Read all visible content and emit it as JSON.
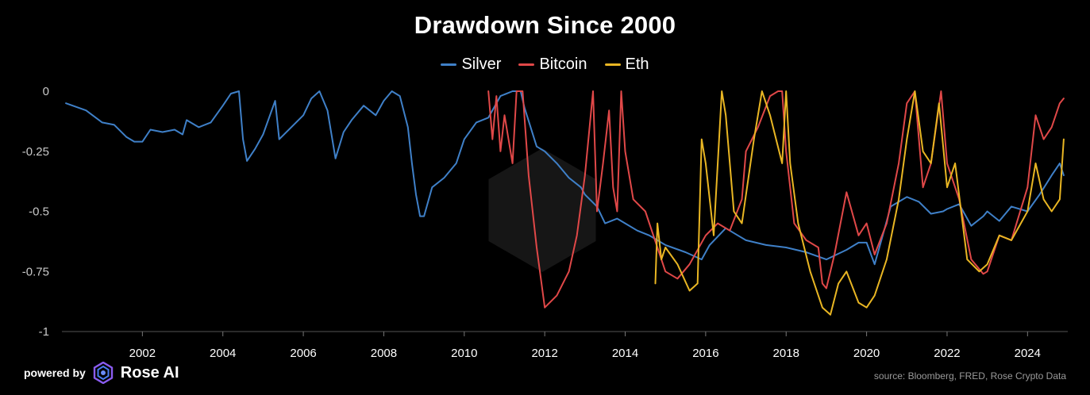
{
  "footer": {
    "powered_by": "powered by",
    "brand": "Rose AI",
    "source": "source: Bloomberg, FRED, Rose Crypto Data"
  },
  "chart_data": {
    "type": "line",
    "title": "Drawdown Since 2000",
    "xlabel": "",
    "ylabel": "",
    "xlim": [
      2000,
      2025
    ],
    "ylim": [
      -1,
      0
    ],
    "x_ticks": [
      2002,
      2004,
      2006,
      2008,
      2010,
      2012,
      2014,
      2016,
      2018,
      2020,
      2022,
      2024
    ],
    "y_ticks": [
      0,
      -0.25,
      -0.5,
      -0.75,
      -1
    ],
    "y_tick_labels": [
      "0",
      "-0.25",
      "-0.5",
      "-0.75",
      "-1"
    ],
    "grid": false,
    "legend_position": "top-center",
    "series": [
      {
        "name": "Silver",
        "color": "#3f80c8",
        "points": [
          [
            2000.1,
            -0.05
          ],
          [
            2000.6,
            -0.08
          ],
          [
            2001.0,
            -0.13
          ],
          [
            2001.3,
            -0.14
          ],
          [
            2001.6,
            -0.19
          ],
          [
            2001.8,
            -0.21
          ],
          [
            2002.0,
            -0.21
          ],
          [
            2002.2,
            -0.16
          ],
          [
            2002.5,
            -0.17
          ],
          [
            2002.8,
            -0.16
          ],
          [
            2003.0,
            -0.18
          ],
          [
            2003.1,
            -0.12
          ],
          [
            2003.4,
            -0.15
          ],
          [
            2003.7,
            -0.13
          ],
          [
            2004.0,
            -0.06
          ],
          [
            2004.2,
            -0.01
          ],
          [
            2004.4,
            0
          ],
          [
            2004.5,
            -0.2
          ],
          [
            2004.6,
            -0.29
          ],
          [
            2004.8,
            -0.24
          ],
          [
            2005.0,
            -0.18
          ],
          [
            2005.3,
            -0.04
          ],
          [
            2005.4,
            -0.2
          ],
          [
            2005.7,
            -0.15
          ],
          [
            2006.0,
            -0.1
          ],
          [
            2006.2,
            -0.03
          ],
          [
            2006.4,
            0
          ],
          [
            2006.6,
            -0.08
          ],
          [
            2006.8,
            -0.28
          ],
          [
            2007.0,
            -0.17
          ],
          [
            2007.2,
            -0.12
          ],
          [
            2007.5,
            -0.06
          ],
          [
            2007.8,
            -0.1
          ],
          [
            2008.0,
            -0.04
          ],
          [
            2008.2,
            0
          ],
          [
            2008.4,
            -0.02
          ],
          [
            2008.6,
            -0.15
          ],
          [
            2008.7,
            -0.3
          ],
          [
            2008.8,
            -0.43
          ],
          [
            2008.9,
            -0.52
          ],
          [
            2009.0,
            -0.52
          ],
          [
            2009.2,
            -0.4
          ],
          [
            2009.5,
            -0.36
          ],
          [
            2009.8,
            -0.3
          ],
          [
            2010.0,
            -0.2
          ],
          [
            2010.3,
            -0.13
          ],
          [
            2010.6,
            -0.11
          ],
          [
            2010.9,
            -0.02
          ],
          [
            2011.2,
            0
          ],
          [
            2011.4,
            0
          ],
          [
            2011.5,
            -0.07
          ],
          [
            2011.8,
            -0.23
          ],
          [
            2012.0,
            -0.25
          ],
          [
            2012.3,
            -0.3
          ],
          [
            2012.6,
            -0.36
          ],
          [
            2012.9,
            -0.4
          ],
          [
            2013.0,
            -0.43
          ],
          [
            2013.3,
            -0.48
          ],
          [
            2013.5,
            -0.55
          ],
          [
            2013.8,
            -0.53
          ],
          [
            2014.0,
            -0.55
          ],
          [
            2014.3,
            -0.58
          ],
          [
            2014.6,
            -0.6
          ],
          [
            2015.0,
            -0.64
          ],
          [
            2015.5,
            -0.67
          ],
          [
            2015.9,
            -0.7
          ],
          [
            2016.1,
            -0.64
          ],
          [
            2016.5,
            -0.57
          ],
          [
            2016.8,
            -0.6
          ],
          [
            2017.0,
            -0.62
          ],
          [
            2017.5,
            -0.64
          ],
          [
            2018.0,
            -0.65
          ],
          [
            2018.5,
            -0.67
          ],
          [
            2019.0,
            -0.7
          ],
          [
            2019.5,
            -0.66
          ],
          [
            2019.8,
            -0.63
          ],
          [
            2020.0,
            -0.63
          ],
          [
            2020.2,
            -0.72
          ],
          [
            2020.4,
            -0.6
          ],
          [
            2020.6,
            -0.48
          ],
          [
            2020.8,
            -0.46
          ],
          [
            2021.0,
            -0.44
          ],
          [
            2021.3,
            -0.46
          ],
          [
            2021.6,
            -0.51
          ],
          [
            2021.9,
            -0.5
          ],
          [
            2022.0,
            -0.49
          ],
          [
            2022.3,
            -0.47
          ],
          [
            2022.6,
            -0.56
          ],
          [
            2022.9,
            -0.52
          ],
          [
            2023.0,
            -0.5
          ],
          [
            2023.3,
            -0.54
          ],
          [
            2023.6,
            -0.48
          ],
          [
            2024.0,
            -0.5
          ],
          [
            2024.3,
            -0.43
          ],
          [
            2024.6,
            -0.35
          ],
          [
            2024.8,
            -0.3
          ],
          [
            2024.9,
            -0.35
          ]
        ]
      },
      {
        "name": "Bitcoin",
        "color": "#e04848",
        "points": [
          [
            2010.6,
            0
          ],
          [
            2010.7,
            -0.2
          ],
          [
            2010.8,
            -0.02
          ],
          [
            2010.9,
            -0.25
          ],
          [
            2011.0,
            -0.1
          ],
          [
            2011.2,
            -0.3
          ],
          [
            2011.3,
            0
          ],
          [
            2011.45,
            0
          ],
          [
            2011.6,
            -0.35
          ],
          [
            2011.8,
            -0.65
          ],
          [
            2012.0,
            -0.9
          ],
          [
            2012.3,
            -0.85
          ],
          [
            2012.6,
            -0.75
          ],
          [
            2012.8,
            -0.6
          ],
          [
            2013.0,
            -0.35
          ],
          [
            2013.2,
            0
          ],
          [
            2013.3,
            -0.5
          ],
          [
            2013.45,
            -0.3
          ],
          [
            2013.6,
            -0.08
          ],
          [
            2013.7,
            -0.4
          ],
          [
            2013.8,
            -0.5
          ],
          [
            2013.9,
            0
          ],
          [
            2014.0,
            -0.25
          ],
          [
            2014.2,
            -0.45
          ],
          [
            2014.5,
            -0.5
          ],
          [
            2014.8,
            -0.65
          ],
          [
            2015.0,
            -0.75
          ],
          [
            2015.3,
            -0.78
          ],
          [
            2015.6,
            -0.72
          ],
          [
            2016.0,
            -0.6
          ],
          [
            2016.3,
            -0.55
          ],
          [
            2016.6,
            -0.58
          ],
          [
            2016.9,
            -0.45
          ],
          [
            2017.0,
            -0.25
          ],
          [
            2017.3,
            -0.15
          ],
          [
            2017.6,
            -0.02
          ],
          [
            2017.8,
            0
          ],
          [
            2017.9,
            0
          ],
          [
            2018.0,
            -0.25
          ],
          [
            2018.2,
            -0.55
          ],
          [
            2018.5,
            -0.62
          ],
          [
            2018.8,
            -0.65
          ],
          [
            2018.9,
            -0.8
          ],
          [
            2019.0,
            -0.82
          ],
          [
            2019.2,
            -0.68
          ],
          [
            2019.5,
            -0.42
          ],
          [
            2019.8,
            -0.6
          ],
          [
            2020.0,
            -0.55
          ],
          [
            2020.2,
            -0.68
          ],
          [
            2020.5,
            -0.55
          ],
          [
            2020.8,
            -0.3
          ],
          [
            2021.0,
            -0.05
          ],
          [
            2021.2,
            0
          ],
          [
            2021.4,
            -0.4
          ],
          [
            2021.6,
            -0.3
          ],
          [
            2021.85,
            0
          ],
          [
            2022.0,
            -0.3
          ],
          [
            2022.3,
            -0.45
          ],
          [
            2022.6,
            -0.7
          ],
          [
            2022.9,
            -0.76
          ],
          [
            2023.0,
            -0.75
          ],
          [
            2023.3,
            -0.6
          ],
          [
            2023.6,
            -0.62
          ],
          [
            2024.0,
            -0.4
          ],
          [
            2024.2,
            -0.1
          ],
          [
            2024.4,
            -0.2
          ],
          [
            2024.6,
            -0.15
          ],
          [
            2024.8,
            -0.05
          ],
          [
            2024.9,
            -0.03
          ]
        ]
      },
      {
        "name": "Eth",
        "color": "#e9b623",
        "points": [
          [
            2014.75,
            -0.8
          ],
          [
            2014.8,
            -0.55
          ],
          [
            2014.9,
            -0.7
          ],
          [
            2015.0,
            -0.65
          ],
          [
            2015.3,
            -0.72
          ],
          [
            2015.6,
            -0.83
          ],
          [
            2015.8,
            -0.8
          ],
          [
            2015.9,
            -0.2
          ],
          [
            2016.0,
            -0.3
          ],
          [
            2016.2,
            -0.6
          ],
          [
            2016.4,
            0
          ],
          [
            2016.5,
            -0.1
          ],
          [
            2016.7,
            -0.5
          ],
          [
            2016.9,
            -0.55
          ],
          [
            2017.2,
            -0.2
          ],
          [
            2017.4,
            0
          ],
          [
            2017.6,
            -0.1
          ],
          [
            2017.9,
            -0.3
          ],
          [
            2018.0,
            0
          ],
          [
            2018.1,
            -0.3
          ],
          [
            2018.3,
            -0.55
          ],
          [
            2018.6,
            -0.75
          ],
          [
            2018.9,
            -0.9
          ],
          [
            2019.1,
            -0.93
          ],
          [
            2019.3,
            -0.8
          ],
          [
            2019.5,
            -0.75
          ],
          [
            2019.8,
            -0.88
          ],
          [
            2020.0,
            -0.9
          ],
          [
            2020.2,
            -0.85
          ],
          [
            2020.5,
            -0.7
          ],
          [
            2020.8,
            -0.45
          ],
          [
            2021.0,
            -0.2
          ],
          [
            2021.2,
            0
          ],
          [
            2021.4,
            -0.25
          ],
          [
            2021.6,
            -0.3
          ],
          [
            2021.8,
            -0.05
          ],
          [
            2022.0,
            -0.4
          ],
          [
            2022.2,
            -0.3
          ],
          [
            2022.5,
            -0.7
          ],
          [
            2022.8,
            -0.75
          ],
          [
            2023.0,
            -0.72
          ],
          [
            2023.3,
            -0.6
          ],
          [
            2023.6,
            -0.62
          ],
          [
            2024.0,
            -0.5
          ],
          [
            2024.2,
            -0.3
          ],
          [
            2024.4,
            -0.45
          ],
          [
            2024.6,
            -0.5
          ],
          [
            2024.8,
            -0.45
          ],
          [
            2024.9,
            -0.2
          ]
        ]
      }
    ]
  }
}
